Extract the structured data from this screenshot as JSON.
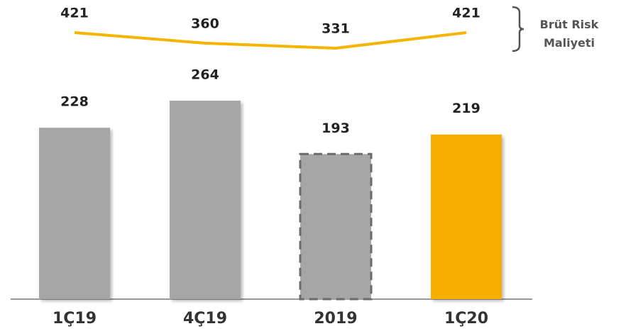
{
  "chart_data": {
    "type": "bar",
    "categories": [
      "1Ç19",
      "4Ç19",
      "2019",
      "1Ç20"
    ],
    "series": [
      {
        "type": "bar",
        "values": [
          228,
          264,
          193,
          219
        ],
        "colors": [
          "#a6a6a6",
          "#a6a6a6",
          "#a6a6a6",
          "#f7ae00"
        ],
        "dashed": [
          false,
          false,
          true,
          false
        ]
      },
      {
        "type": "line",
        "name": "Brüt Risk Maliyeti",
        "color": "#f5b400",
        "values": [
          421,
          360,
          331,
          421
        ]
      }
    ]
  }
}
